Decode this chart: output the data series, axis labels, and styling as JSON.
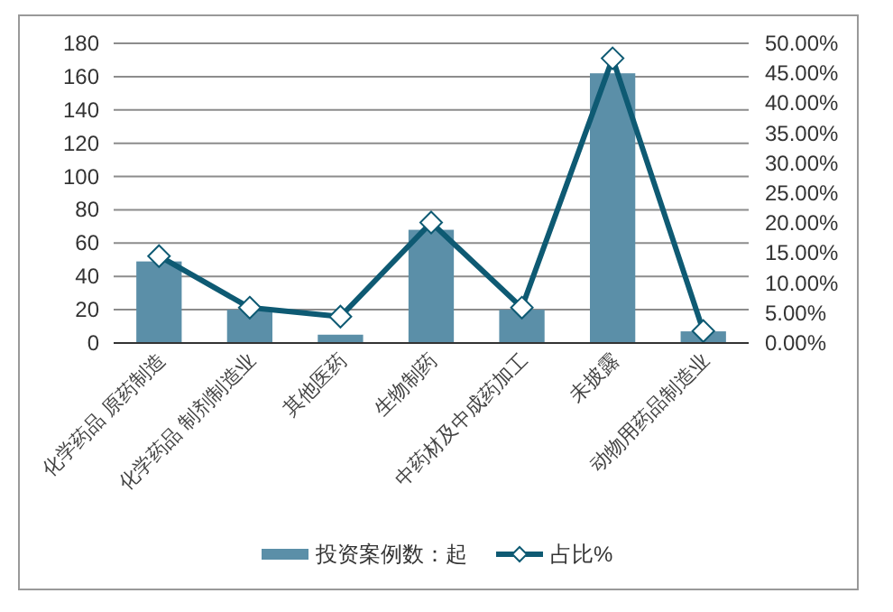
{
  "chart_data": {
    "type": "bar",
    "categories": [
      "化学药品 原药制造",
      "化学药品 制剂制造业",
      "其他医药",
      "生物制药",
      "中药材及中成药加工",
      "未披露",
      "动物用药品制造业"
    ],
    "series": [
      {
        "name": "投资案例数：起",
        "color": "#5b8fa8",
        "values": [
          49,
          20,
          5,
          68,
          20,
          162,
          7
        ]
      },
      {
        "name": "占比%",
        "type": "line",
        "axis": "y2",
        "color": "#0e5a73",
        "marker": "diamond",
        "values": [
          14.5,
          5.9,
          4.4,
          20.1,
          5.9,
          47.5,
          2.0
        ]
      }
    ],
    "ylim": [
      0,
      180
    ],
    "yticks": [
      0,
      20,
      40,
      60,
      80,
      100,
      120,
      140,
      160,
      180
    ],
    "y2lim": [
      0,
      50
    ],
    "y2ticks": [
      {
        "value": 0,
        "label": "0.00%"
      },
      {
        "value": 5,
        "label": "5.00%"
      },
      {
        "value": 10,
        "label": "10.00%"
      },
      {
        "value": 15,
        "label": "15.00%"
      },
      {
        "value": 20,
        "label": "20.00%"
      },
      {
        "value": 25,
        "label": "25.00%"
      },
      {
        "value": 30,
        "label": "30.00%"
      },
      {
        "value": 35,
        "label": "35.00%"
      },
      {
        "value": 40,
        "label": "40.00%"
      },
      {
        "value": 45,
        "label": "45.00%"
      },
      {
        "value": 50,
        "label": "50.00%"
      }
    ],
    "grid": "y",
    "legend": "bottom"
  }
}
